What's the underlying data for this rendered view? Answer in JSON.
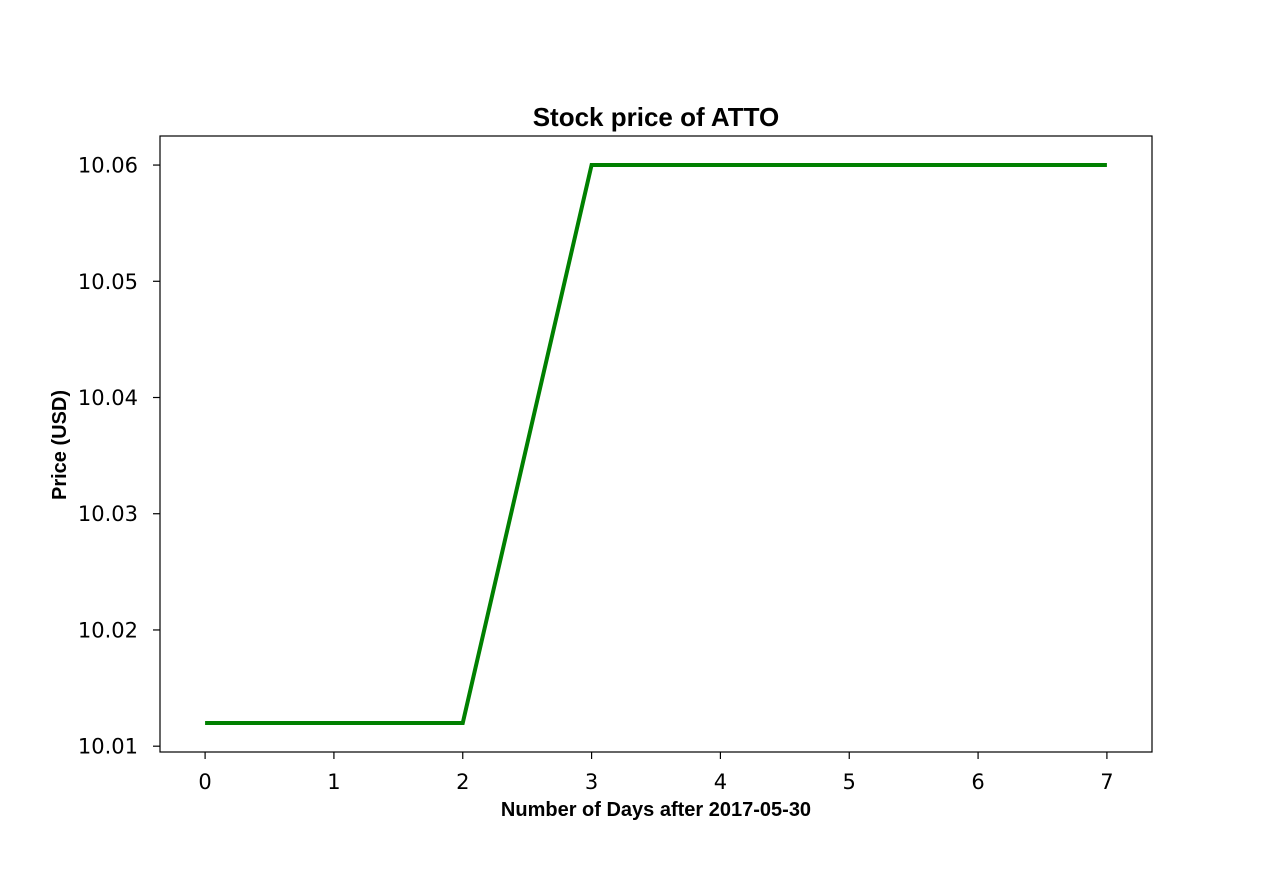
{
  "chart_data": {
    "type": "line",
    "title": "Stock price of ATTO",
    "xlabel": "Number of Days after 2017-05-30",
    "ylabel": "Price (USD)",
    "x": [
      0,
      1,
      2,
      3,
      4,
      5,
      6,
      7
    ],
    "series": [
      {
        "values": [
          10.012,
          10.012,
          10.012,
          10.06,
          10.06,
          10.06,
          10.06,
          10.06
        ],
        "color": "#008000"
      }
    ],
    "xlim": [
      -0.35,
      7.35
    ],
    "ylim": [
      10.0095,
      10.0625
    ],
    "x_ticks": [
      "0",
      "1",
      "2",
      "3",
      "4",
      "5",
      "6",
      "7"
    ],
    "y_ticks": [
      "10.01",
      "10.02",
      "10.03",
      "10.04",
      "10.05",
      "10.06"
    ],
    "grid": false,
    "legend": "none"
  }
}
